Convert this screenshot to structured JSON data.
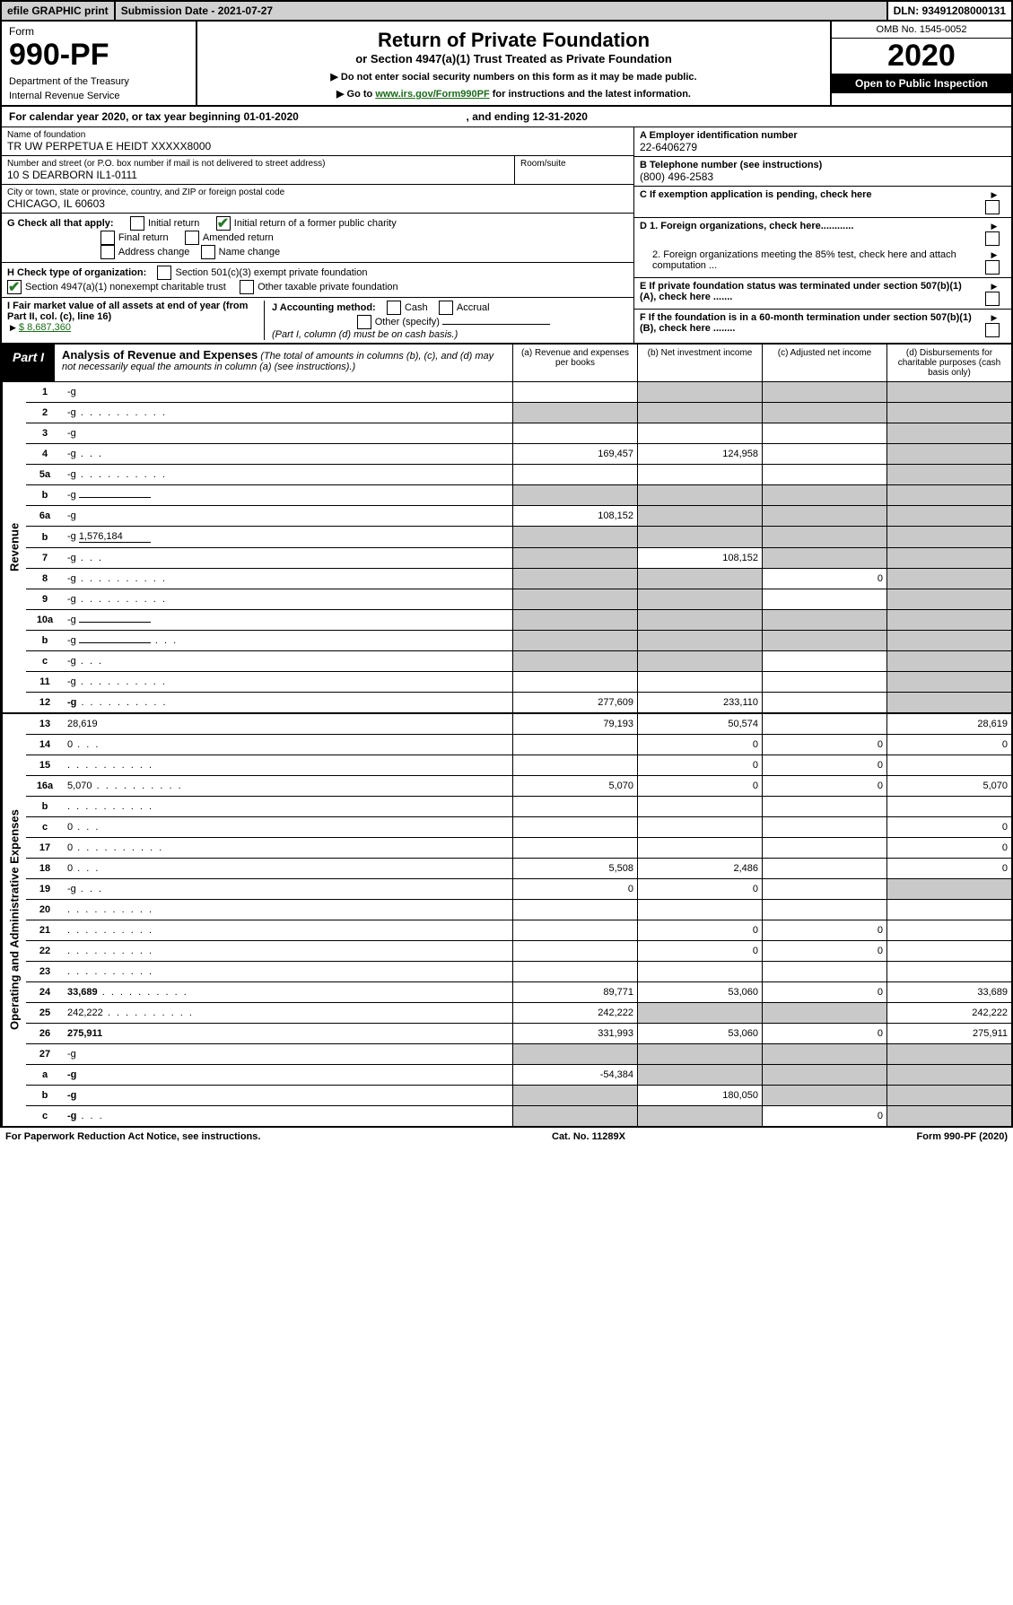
{
  "topbar": {
    "efile": "efile GRAPHIC print",
    "sub_date": "Submission Date - 2021-07-27",
    "dln": "DLN: 93491208000131"
  },
  "header": {
    "form_word": "Form",
    "form_no": "990-PF",
    "dept": "Department of the Treasury",
    "irs": "Internal Revenue Service",
    "title": "Return of Private Foundation",
    "subtitle": "or Section 4947(a)(1) Trust Treated as Private Foundation",
    "instr1": "▶ Do not enter social security numbers on this form as it may be made public.",
    "instr2_pre": "▶ Go to ",
    "instr2_link": "www.irs.gov/Form990PF",
    "instr2_post": " for instructions and the latest information.",
    "omb": "OMB No. 1545-0052",
    "year": "2020",
    "open_pub": "Open to Public Inspection"
  },
  "cal_year": {
    "pre": "For calendar year 2020, or tax year beginning ",
    "begin": "01-01-2020",
    "mid": " , and ending ",
    "end": "12-31-2020"
  },
  "info": {
    "name_label": "Name of foundation",
    "name": "TR UW PERPETUA E HEIDT XXXXX8000",
    "addr_label": "Number and street (or P.O. box number if mail is not delivered to street address)",
    "addr": "10 S DEARBORN IL1-0111",
    "room_label": "Room/suite",
    "city_label": "City or town, state or province, country, and ZIP or foreign postal code",
    "city": "CHICAGO, IL  60603",
    "ein_label": "A Employer identification number",
    "ein": "22-6406279",
    "phone_label": "B Telephone number (see instructions)",
    "phone": "(800) 496-2583",
    "c": "C If exemption application is pending, check here",
    "d1": "D 1. Foreign organizations, check here............",
    "d2": "2. Foreign organizations meeting the 85% test, check here and attach computation ...",
    "e": "E  If private foundation status was terminated under section 507(b)(1)(A), check here .......",
    "f": "F  If the foundation is in a 60-month termination under section 507(b)(1)(B), check here ........"
  },
  "checks": {
    "g_label": "G Check all that apply:",
    "g_opts": [
      "Initial return",
      "Initial return of a former public charity",
      "Final return",
      "Amended return",
      "Address change",
      "Name change"
    ],
    "h_label": "H Check type of organization:",
    "h1": "Section 501(c)(3) exempt private foundation",
    "h2": "Section 4947(a)(1) nonexempt charitable trust",
    "h3": "Other taxable private foundation",
    "i_label": "I Fair market value of all assets at end of year (from Part II, col. (c), line 16)",
    "i_amount": "$  8,687,360",
    "j_label": "J Accounting method:",
    "j_cash": "Cash",
    "j_accrual": "Accrual",
    "j_other": "Other (specify)",
    "j_note": "(Part I, column (d) must be on cash basis.)"
  },
  "part1": {
    "tab": "Part I",
    "title": "Analysis of Revenue and Expenses",
    "note": "(The total of amounts in columns (b), (c), and (d) may not necessarily equal the amounts in column (a) (see instructions).)",
    "col_a": "(a)   Revenue and expenses per books",
    "col_b": "(b)   Net investment income",
    "col_c": "(c)   Adjusted net income",
    "col_d": "(d)   Disbursements for charitable purposes (cash basis only)"
  },
  "sections": {
    "revenue": "Revenue",
    "expenses": "Operating and Administrative Expenses"
  },
  "rows": [
    {
      "n": "1",
      "d": "-g",
      "a": "",
      "b": "-g",
      "c": "-g"
    },
    {
      "n": "2",
      "d": "-g",
      "dots": "long",
      "a": "-g",
      "b": "-g",
      "c": "-g"
    },
    {
      "n": "3",
      "d": "-g",
      "a": "",
      "b": "",
      "c": ""
    },
    {
      "n": "4",
      "d": "-g",
      "dots": "s",
      "a": "169,457",
      "b": "124,958",
      "c": ""
    },
    {
      "n": "5a",
      "d": "-g",
      "dots": "long",
      "a": "",
      "b": "",
      "c": ""
    },
    {
      "n": "b",
      "d": "-g",
      "inline": true,
      "a": "-g",
      "b": "-g",
      "c": "-g"
    },
    {
      "n": "6a",
      "d": "-g",
      "a": "108,152",
      "b": "-g",
      "c": "-g"
    },
    {
      "n": "b",
      "d": "-g",
      "inline": true,
      "inline_val": "1,576,184",
      "a": "-g",
      "b": "-g",
      "c": "-g"
    },
    {
      "n": "7",
      "d": "-g",
      "dots": "s",
      "a": "-g",
      "b": "108,152",
      "c": "-g"
    },
    {
      "n": "8",
      "d": "-g",
      "dots": "long",
      "a": "-g",
      "b": "-g",
      "c": "0"
    },
    {
      "n": "9",
      "d": "-g",
      "dots": "long",
      "a": "-g",
      "b": "-g",
      "c": ""
    },
    {
      "n": "10a",
      "d": "-g",
      "inline": true,
      "a": "-g",
      "b": "-g",
      "c": "-g"
    },
    {
      "n": "b",
      "d": "-g",
      "dots": "s",
      "inline": true,
      "a": "-g",
      "b": "-g",
      "c": "-g"
    },
    {
      "n": "c",
      "d": "-g",
      "dots": "s",
      "a": "-g",
      "b": "-g",
      "c": ""
    },
    {
      "n": "11",
      "d": "-g",
      "dots": "long",
      "a": "",
      "b": "",
      "c": ""
    },
    {
      "n": "12",
      "d": "-g",
      "dots": "long",
      "bold": true,
      "a": "277,609",
      "b": "233,110",
      "c": ""
    }
  ],
  "rows2": [
    {
      "n": "13",
      "d": "28,619",
      "a": "79,193",
      "b": "50,574",
      "c": ""
    },
    {
      "n": "14",
      "d": "0",
      "dots": "s",
      "a": "",
      "b": "0",
      "c": "0"
    },
    {
      "n": "15",
      "d": "",
      "dots": "long",
      "a": "",
      "b": "0",
      "c": "0"
    },
    {
      "n": "16a",
      "d": "5,070",
      "dots": "long",
      "a": "5,070",
      "b": "0",
      "c": "0"
    },
    {
      "n": "b",
      "d": "",
      "dots": "long",
      "a": "",
      "b": "",
      "c": ""
    },
    {
      "n": "c",
      "d": "0",
      "dots": "s",
      "a": "",
      "b": "",
      "c": ""
    },
    {
      "n": "17",
      "d": "0",
      "dots": "long",
      "a": "",
      "b": "",
      "c": ""
    },
    {
      "n": "18",
      "d": "0",
      "dots": "s",
      "a": "5,508",
      "b": "2,486",
      "c": ""
    },
    {
      "n": "19",
      "d": "-g",
      "dots": "s",
      "a": "0",
      "b": "0",
      "c": ""
    },
    {
      "n": "20",
      "d": "",
      "dots": "long",
      "a": "",
      "b": "",
      "c": ""
    },
    {
      "n": "21",
      "d": "",
      "dots": "long",
      "a": "",
      "b": "0",
      "c": "0"
    },
    {
      "n": "22",
      "d": "",
      "dots": "long",
      "a": "",
      "b": "0",
      "c": "0"
    },
    {
      "n": "23",
      "d": "",
      "dots": "long",
      "a": "",
      "b": "",
      "c": ""
    },
    {
      "n": "24",
      "d": "33,689",
      "dots": "long",
      "bold": true,
      "a": "89,771",
      "b": "53,060",
      "c": "0"
    },
    {
      "n": "25",
      "d": "242,222",
      "dots": "long",
      "a": "242,222",
      "b": "-g",
      "c": "-g"
    },
    {
      "n": "26",
      "d": "275,911",
      "bold": true,
      "a": "331,993",
      "b": "53,060",
      "c": "0"
    },
    {
      "n": "27",
      "d": "-g",
      "a": "-g",
      "b": "-g",
      "c": "-g"
    },
    {
      "n": "a",
      "d": "-g",
      "bold": true,
      "a": "-54,384",
      "b": "-g",
      "c": "-g"
    },
    {
      "n": "b",
      "d": "-g",
      "bold": true,
      "a": "-g",
      "b": "180,050",
      "c": "-g"
    },
    {
      "n": "c",
      "d": "-g",
      "dots": "s",
      "bold": true,
      "a": "-g",
      "b": "-g",
      "c": "0"
    }
  ],
  "footer": {
    "left": "For Paperwork Reduction Act Notice, see instructions.",
    "mid": "Cat. No. 11289X",
    "right": "Form 990-PF (2020)"
  }
}
